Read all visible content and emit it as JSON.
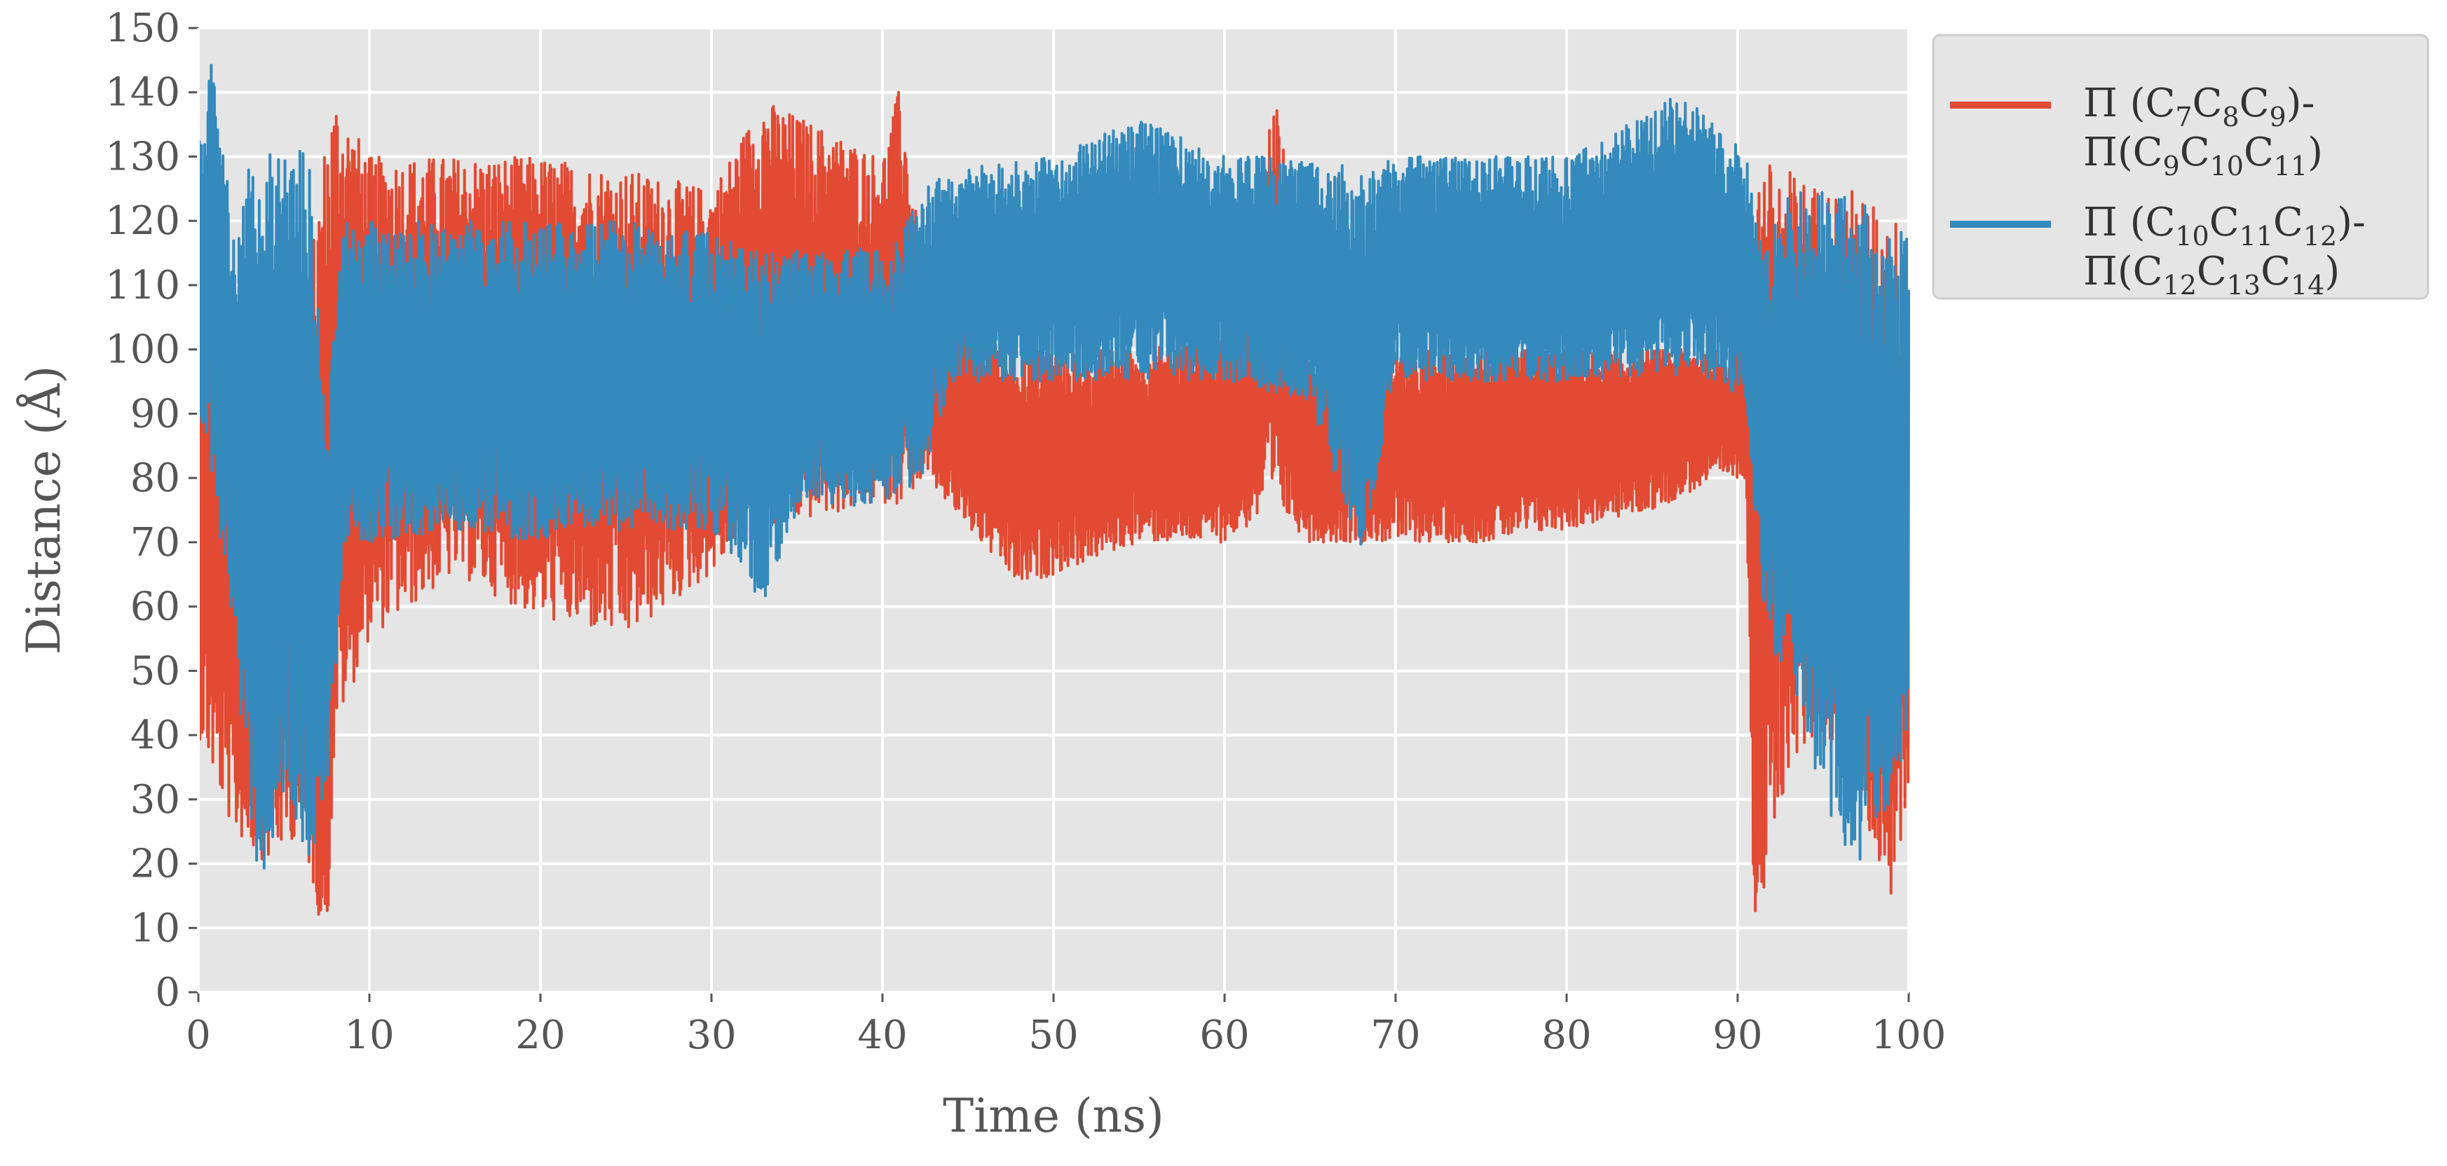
{
  "chart_data": {
    "type": "line",
    "xlabel": "Time (ns)",
    "ylabel": "Distance (Å)",
    "xlim": [
      0,
      100
    ],
    "ylim": [
      0,
      150
    ],
    "x_ticks": [
      "0",
      "10",
      "20",
      "30",
      "40",
      "50",
      "60",
      "70",
      "80",
      "90",
      "100"
    ],
    "y_ticks": [
      "0",
      "10",
      "20",
      "30",
      "40",
      "50",
      "60",
      "70",
      "80",
      "90",
      "100",
      "110",
      "120",
      "130",
      "140",
      "150"
    ],
    "grid": true,
    "legend_position": "outside-top-right",
    "series": [
      {
        "name": "Π (C7C8C9)-Π(C9C10C11)",
        "legend_line1": {
          "pre": "Π (C",
          "parts": [
            [
              "7",
              "C"
            ],
            [
              "8",
              "C"
            ],
            [
              "9",
              ")-"
            ]
          ]
        },
        "legend_line2": {
          "pre": "Π(C",
          "parts": [
            [
              "9",
              "C"
            ],
            [
              "10",
              "C"
            ],
            [
              "11",
              ")"
            ]
          ]
        },
        "color": "#E24A33",
        "envelope": [
          {
            "x": 0,
            "min": 40,
            "max": 130
          },
          {
            "x": 2,
            "min": 25,
            "max": 95
          },
          {
            "x": 4,
            "min": 20,
            "max": 95
          },
          {
            "x": 6,
            "min": 25,
            "max": 100
          },
          {
            "x": 7.5,
            "min": 6,
            "max": 135
          },
          {
            "x": 8,
            "min": 40,
            "max": 140
          },
          {
            "x": 10,
            "min": 55,
            "max": 130
          },
          {
            "x": 15,
            "min": 65,
            "max": 130
          },
          {
            "x": 20,
            "min": 58,
            "max": 130
          },
          {
            "x": 25,
            "min": 55,
            "max": 128
          },
          {
            "x": 30,
            "min": 65,
            "max": 125
          },
          {
            "x": 33,
            "min": 72,
            "max": 139
          },
          {
            "x": 40,
            "min": 76,
            "max": 130
          },
          {
            "x": 41,
            "min": 76,
            "max": 141
          },
          {
            "x": 42.5,
            "min": 80,
            "max": 110
          },
          {
            "x": 45,
            "min": 72,
            "max": 105
          },
          {
            "x": 48,
            "min": 63,
            "max": 100
          },
          {
            "x": 50,
            "min": 65,
            "max": 100
          },
          {
            "x": 55,
            "min": 70,
            "max": 100
          },
          {
            "x": 60,
            "min": 70,
            "max": 102
          },
          {
            "x": 63,
            "min": 75,
            "max": 140
          },
          {
            "x": 65,
            "min": 70,
            "max": 100
          },
          {
            "x": 70,
            "min": 70,
            "max": 100
          },
          {
            "x": 75,
            "min": 70,
            "max": 100
          },
          {
            "x": 80,
            "min": 72,
            "max": 100
          },
          {
            "x": 85,
            "min": 75,
            "max": 100
          },
          {
            "x": 89,
            "min": 80,
            "max": 100
          },
          {
            "x": 90.5,
            "min": 80,
            "max": 102
          },
          {
            "x": 91,
            "min": 6,
            "max": 130
          },
          {
            "x": 93,
            "min": 35,
            "max": 128
          },
          {
            "x": 95,
            "min": 40,
            "max": 125
          },
          {
            "x": 97,
            "min": 30,
            "max": 125
          },
          {
            "x": 99,
            "min": 14,
            "max": 120
          },
          {
            "x": 100,
            "min": 30,
            "max": 122
          }
        ]
      },
      {
        "name": "Π (C10C11C12)-Π(C12C13C14)",
        "legend_line1": {
          "pre": "Π (C",
          "parts": [
            [
              "10",
              "C"
            ],
            [
              "11",
              "C"
            ],
            [
              "12",
              ")-"
            ]
          ]
        },
        "legend_line2": {
          "pre": "Π(C",
          "parts": [
            [
              "12",
              "C"
            ],
            [
              "13",
              "C"
            ],
            [
              "14",
              ")"
            ]
          ]
        },
        "color": "#348ABD",
        "envelope": [
          {
            "x": 0,
            "min": 88,
            "max": 135
          },
          {
            "x": 0.8,
            "min": 80,
            "max": 145
          },
          {
            "x": 2,
            "min": 55,
            "max": 120
          },
          {
            "x": 3.5,
            "min": 16,
            "max": 133
          },
          {
            "x": 5,
            "min": 30,
            "max": 133
          },
          {
            "x": 6.5,
            "min": 20,
            "max": 131
          },
          {
            "x": 7.5,
            "min": 30,
            "max": 90
          },
          {
            "x": 8.5,
            "min": 70,
            "max": 120
          },
          {
            "x": 10,
            "min": 70,
            "max": 120
          },
          {
            "x": 15,
            "min": 72,
            "max": 120
          },
          {
            "x": 20,
            "min": 70,
            "max": 120
          },
          {
            "x": 25,
            "min": 72,
            "max": 120
          },
          {
            "x": 30,
            "min": 72,
            "max": 118
          },
          {
            "x": 33,
            "min": 60,
            "max": 115
          },
          {
            "x": 35,
            "min": 75,
            "max": 116
          },
          {
            "x": 40,
            "min": 76,
            "max": 116
          },
          {
            "x": 42.5,
            "min": 80,
            "max": 125
          },
          {
            "x": 44,
            "min": 95,
            "max": 128
          },
          {
            "x": 50,
            "min": 95,
            "max": 130
          },
          {
            "x": 55,
            "min": 95,
            "max": 136
          },
          {
            "x": 60,
            "min": 95,
            "max": 130
          },
          {
            "x": 65,
            "min": 92,
            "max": 130
          },
          {
            "x": 68,
            "min": 68,
            "max": 128
          },
          {
            "x": 70,
            "min": 95,
            "max": 130
          },
          {
            "x": 75,
            "min": 95,
            "max": 130
          },
          {
            "x": 80,
            "min": 95,
            "max": 130
          },
          {
            "x": 86,
            "min": 96,
            "max": 139
          },
          {
            "x": 88,
            "min": 96,
            "max": 138
          },
          {
            "x": 90.5,
            "min": 92,
            "max": 130
          },
          {
            "x": 91.5,
            "min": 55,
            "max": 115
          },
          {
            "x": 93,
            "min": 50,
            "max": 125
          },
          {
            "x": 95,
            "min": 30,
            "max": 125
          },
          {
            "x": 97,
            "min": 19,
            "max": 124
          },
          {
            "x": 99,
            "min": 30,
            "max": 120
          },
          {
            "x": 100,
            "min": 35,
            "max": 118
          }
        ]
      }
    ]
  }
}
